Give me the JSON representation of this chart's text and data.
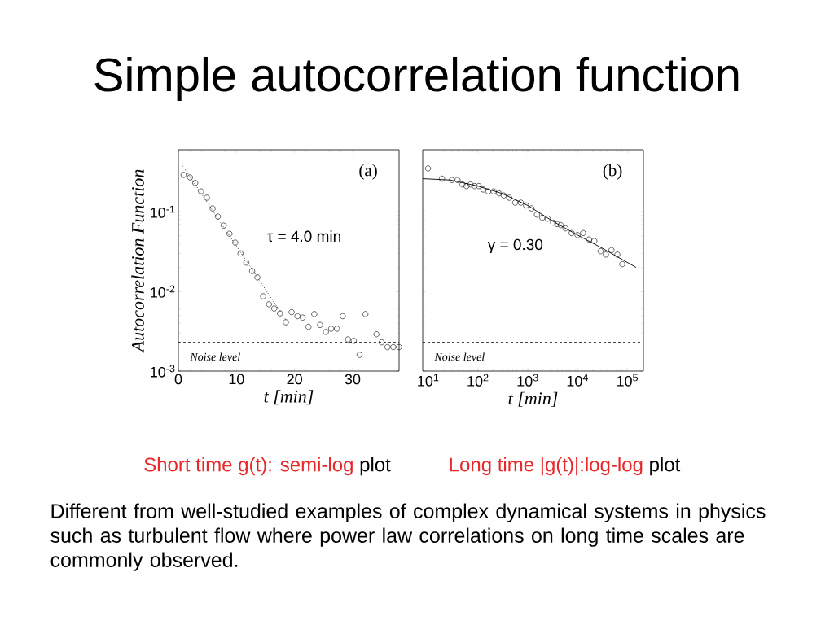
{
  "chart_data": [
    {
      "type": "scatter",
      "title": "Simple autocorrelation function",
      "xlabel": "t [min]",
      "ylabel": "Autocorrelation Function",
      "log": "y",
      "xlim": [
        0,
        38
      ],
      "ylim": [
        0.001,
        0.6
      ],
      "xticks": [
        0,
        10,
        20,
        30
      ],
      "yticks": [
        {
          "value": 0.001,
          "label": "10$^{-3}$"
        },
        {
          "value": 0.01,
          "label": "10$^{-2}$"
        },
        {
          "value": 0.1,
          "label": "10$^{-1}$"
        }
      ],
      "series": [
        {
          "color": "#000000",
          "marker": "circle",
          "x": [
            0.9,
            2.0,
            2.9,
            3.9,
            4.9,
            5.9,
            6.8,
            7.8,
            8.8,
            9.8,
            10.7,
            11.7,
            12.7,
            13.6,
            14.6,
            15.6,
            16.5,
            17.5,
            18.5,
            19.5,
            20.5,
            21.4,
            22.4,
            23.4,
            24.4,
            25.4,
            26.3,
            27.3,
            28.3,
            29.2,
            30.2,
            31.2,
            32.2,
            34.1,
            35.0,
            36.0,
            37.0,
            38.0
          ],
          "values": [
            0.29,
            0.27,
            0.23,
            0.18,
            0.15,
            0.11,
            0.087,
            0.067,
            0.053,
            0.041,
            0.03,
            0.023,
            0.018,
            0.015,
            0.0087,
            0.0069,
            0.0061,
            0.0053,
            0.0041,
            0.0055,
            0.0049,
            0.0047,
            0.0036,
            0.0052,
            0.0038,
            0.0031,
            0.0034,
            0.0034,
            0.0049,
            0.0025,
            0.0024,
            0.0016,
            0.0052,
            0.0029,
            0.0023,
            0.002,
            0.002,
            0.002
          ]
        },
        {
          "type": "line",
          "color": "#000000",
          "line_style": "dotted",
          "x": [
            0.5,
            18.5
          ],
          "values": [
            0.4,
            0.0044
          ]
        }
      ],
      "ref_lines": [
        {
          "axis": "y",
          "value": 0.0023,
          "label": "Noise level",
          "color": "#000000",
          "line_style": "dashed"
        }
      ],
      "annotations": [
        "Short time g(t): semi-log",
        "plot",
        "Different from well-studied examples of complex dynamical systems in physics such as turbulent flow where power law correlations on long time scales are commonly observed.",
        "τ = 4.0 min",
        "(a)"
      ]
    },
    {
      "type": "scatter",
      "xlabel": "t [min]",
      "log": "xy",
      "tick_labels": "x",
      "xlim": [
        7.8,
        210000
      ],
      "ylim": [
        0.001,
        0.6
      ],
      "xticks": [
        {
          "value": 10,
          "label": "10$^{1}$"
        },
        {
          "value": 100,
          "label": "10$^{2}$"
        },
        {
          "value": 1000,
          "label": "10$^{3}$"
        },
        {
          "value": 10000,
          "label": "10$^{4}$"
        },
        {
          "value": 100000,
          "label": "10$^{5}$"
        }
      ],
      "yticks": [
        {
          "value": 0.001,
          "label": null
        },
        {
          "value": 0.01,
          "label": null
        },
        {
          "value": 0.1,
          "label": null
        }
      ],
      "series": [
        {
          "color": "#000000",
          "marker": "circle",
          "x": [
            10,
            19,
            30,
            39,
            49,
            59,
            71,
            86,
            104,
            128,
            161,
            207,
            265,
            330,
            425,
            560,
            725,
            925,
            1190,
            1530,
            1960,
            2510,
            3230,
            3900,
            4600,
            5700,
            7600,
            10000,
            12900,
            17000,
            21700,
            29000,
            37000,
            48000,
            63000,
            79000
          ],
          "values": [
            0.35,
            0.26,
            0.25,
            0.25,
            0.22,
            0.21,
            0.22,
            0.21,
            0.21,
            0.19,
            0.18,
            0.18,
            0.17,
            0.16,
            0.15,
            0.13,
            0.13,
            0.12,
            0.11,
            0.092,
            0.084,
            0.082,
            0.073,
            0.07,
            0.068,
            0.062,
            0.054,
            0.051,
            0.054,
            0.045,
            0.043,
            0.032,
            0.029,
            0.033,
            0.029,
            0.022
          ]
        },
        {
          "type": "line",
          "color": "#000000",
          "line_style": "solid",
          "x": [
            7.8,
            28,
            100,
            300,
            1000,
            3200,
            10000,
            31000,
            150000
          ],
          "values": [
            0.26,
            0.25,
            0.21,
            0.17,
            0.12,
            0.076,
            0.051,
            0.035,
            0.02
          ]
        }
      ],
      "ref_lines": [
        {
          "axis": "y",
          "value": 0.0023,
          "label": "Noise level",
          "color": "#000000",
          "line_style": "dashed"
        }
      ],
      "annotations": [
        "Long time |g(t)|:log-log",
        "plot",
        "γ = 0.30",
        "(b)"
      ]
    }
  ]
}
